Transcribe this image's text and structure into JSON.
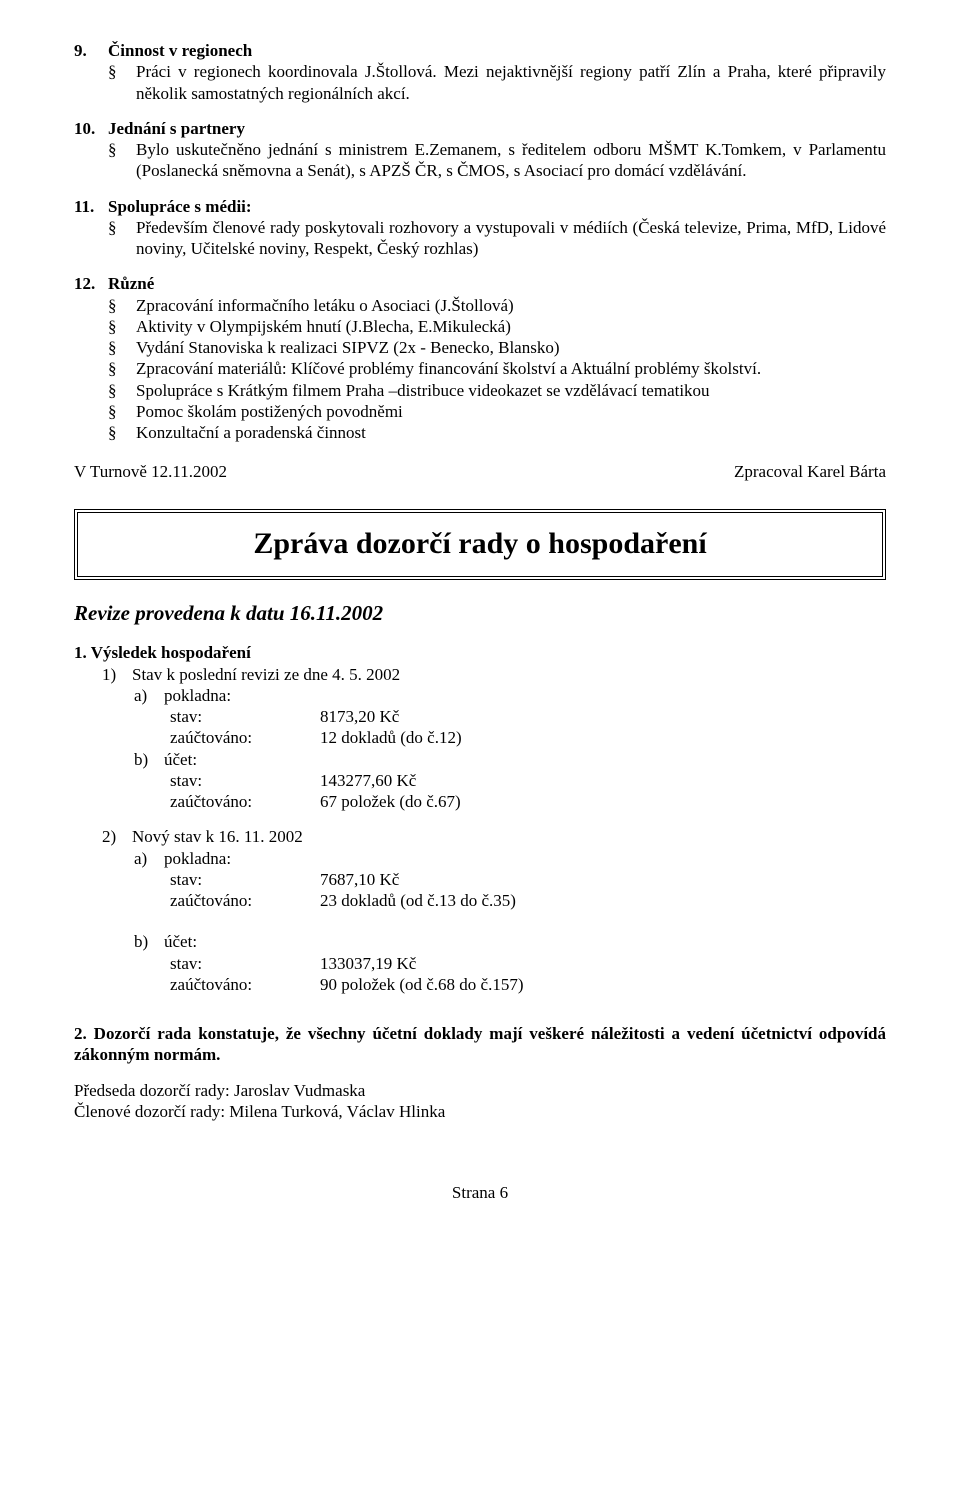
{
  "bullet_char": "§",
  "sec9": {
    "num": "9.",
    "title": "Činnost v regionech",
    "items": [
      "Práci v regionech koordinovala J.Štollová. Mezi nejaktivnější regiony patří Zlín a Praha, které připravily několik samostatných regionálních akcí."
    ]
  },
  "sec10": {
    "num": "10.",
    "title": "Jednání s partnery",
    "items": [
      "Bylo uskutečněno jednání s ministrem E.Zemanem, s ředitelem odboru MŠMT K.Tomkem, v Parlamentu (Poslanecká sněmovna a Senát), s APZŠ ČR, s ČMOS, s Asociací pro domácí vzdělávání."
    ]
  },
  "sec11": {
    "num": "11.",
    "title": "Spolupráce s médii:",
    "items": [
      "Především členové rady poskytovali rozhovory a vystupovali v médiích (Česká televize, Prima, MfD, Lidové noviny, Učitelské noviny, Respekt, Český rozhlas)"
    ]
  },
  "sec12": {
    "num": "12.",
    "title": "Různé",
    "items": [
      "Zpracování informačního letáku o Asociaci (J.Štollová)",
      "Aktivity v Olympijském hnutí (J.Blecha, E.Mikulecká)",
      "Vydání Stanoviska k realizaci SIPVZ (2x  -  Benecko, Blansko)",
      "Zpracování materiálů: Klíčové problémy financování školství a Aktuální problémy školství.",
      "Spolupráce s Krátkým filmem Praha –distribuce videokazet se vzdělávací tematikou",
      "Pomoc školám postižených povodněmi",
      "Konzultační a poradenská činnost"
    ]
  },
  "footer_left": "V Turnově 12.11.2002",
  "footer_right": "Zpracoval Karel Bárta",
  "framed_title": "Zpráva dozorčí rady o hospodaření",
  "sub_heading": "Revize provedena k datu 16.11.2002",
  "result": {
    "heading": "1. Výsledek hospodaření",
    "r1": {
      "enum": "1)",
      "text": "Stav k poslední revizi ze dne 4. 5. 2002",
      "a_enum": "a)",
      "a_label": "pokladna:",
      "a_stav_k": "stav:",
      "a_stav_v": "8173,20 Kč",
      "a_zau_k": "zaúčtováno:",
      "a_zau_v": "12 dokladů (do č.12)",
      "b_enum": "b)",
      "b_label": "účet:",
      "b_stav_k": "stav:",
      "b_stav_v": "143277,60 Kč",
      "b_zau_k": "zaúčtováno:",
      "b_zau_v": "67 položek (do č.67)"
    },
    "r2": {
      "enum": "2)",
      "text": "Nový stav k 16. 11. 2002",
      "a_enum": "a)",
      "a_label": "pokladna:",
      "a_stav_k": "stav:",
      "a_stav_v": "7687,10 Kč",
      "a_zau_k": "zaúčtováno:",
      "a_zau_v": "23 dokladů (od č.13 do č.35)",
      "b_enum": "b)",
      "b_label": "účet:",
      "b_stav_k": "stav:",
      "b_stav_v": "133037,19 Kč",
      "b_zau_k": "zaúčtováno:",
      "b_zau_v": "90 položek (od č.68 do č.157)"
    }
  },
  "para2": "2. Dozorčí rada konstatuje, že všechny účetní doklady mají veškeré náležitosti a vedení účetnictví odpovídá zákonným normám.",
  "sig1": "Předseda dozorčí rady: Jaroslav Vudmaska",
  "sig2": "Členové dozorčí rady: Milena Turková, Václav Hlinka",
  "page_footer": "Strana 6"
}
